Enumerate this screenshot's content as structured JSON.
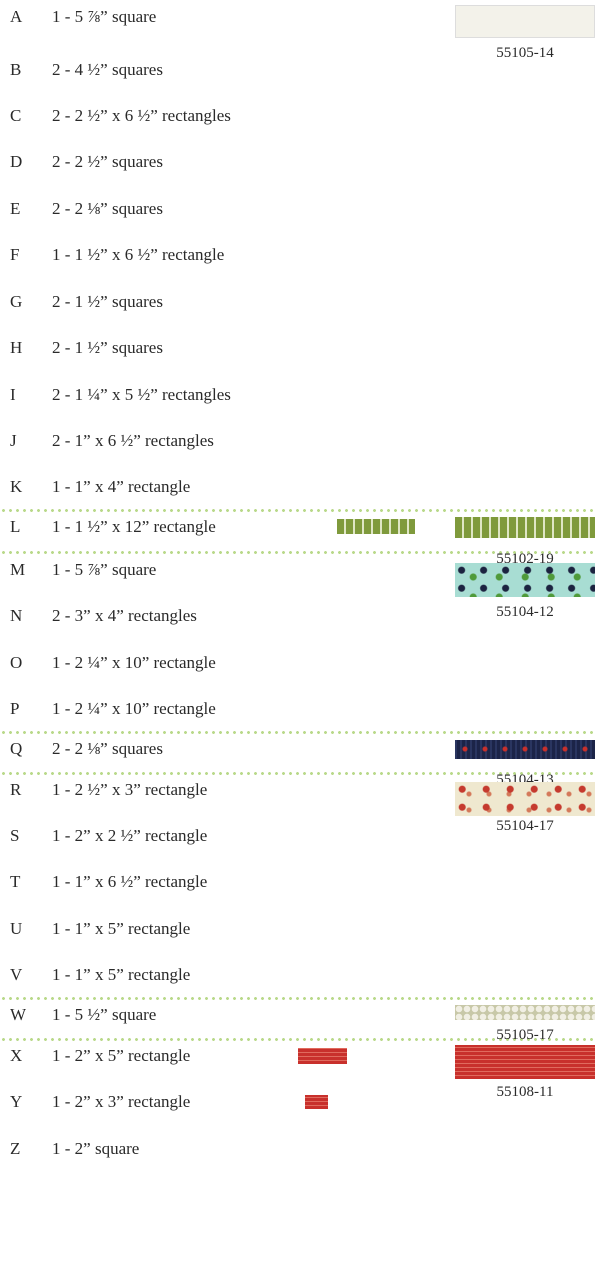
{
  "rows": [
    {
      "letter": "A",
      "text": "1 - 5 ⅞” square"
    },
    {
      "letter": "B",
      "text": "2 - 4 ½” squares"
    },
    {
      "letter": "C",
      "text": "2 - 2 ½” x 6 ½” rectangles"
    },
    {
      "letter": "D",
      "text": "2 - 2 ½” squares"
    },
    {
      "letter": "E",
      "text": "2 - 2 ⅛” squares"
    },
    {
      "letter": "F",
      "text": "1 - 1 ½” x 6 ½” rectangle"
    },
    {
      "letter": "G",
      "text": "2 - 1 ½” squares"
    },
    {
      "letter": "H",
      "text": "2 - 1 ½” squares"
    },
    {
      "letter": "I",
      "text": "2 - 1 ¼” x 5 ½” rectangles"
    },
    {
      "letter": "J",
      "text": "2 - 1” x 6 ½” rectangles"
    },
    {
      "letter": "K",
      "text": "1 - 1” x 4” rectangle"
    },
    {
      "letter": "L",
      "text": "1 - 1 ½” x 12” rectangle"
    },
    {
      "letter": "M",
      "text": "1 - 5 ⅞” square"
    },
    {
      "letter": "N",
      "text": "2 - 3” x 4” rectangles"
    },
    {
      "letter": "O",
      "text": "1 - 2 ¼” x 10” rectangle"
    },
    {
      "letter": "P",
      "text": "1 - 2 ¼” x 10” rectangle"
    },
    {
      "letter": "Q",
      "text": "2 - 2 ⅛” squares"
    },
    {
      "letter": "R",
      "text": "1 - 2 ½” x 3” rectangle"
    },
    {
      "letter": "S",
      "text": "1 - 2” x 2 ½” rectangle"
    },
    {
      "letter": "T",
      "text": "1 - 1” x 6 ½” rectangle"
    },
    {
      "letter": "U",
      "text": "1 - 1” x 5” rectangle"
    },
    {
      "letter": "V",
      "text": "1 - 1” x 5” rectangle"
    },
    {
      "letter": "W",
      "text": "1 - 5 ½” square"
    },
    {
      "letter": "X",
      "text": "1 - 2” x 5” rectangle"
    },
    {
      "letter": "Y",
      "text": "1 - 2” x 3” rectangle"
    },
    {
      "letter": "Z",
      "text": "1 - 2” square"
    }
  ],
  "fabrics": [
    {
      "code": "55105-14"
    },
    {
      "code": "55102-19"
    },
    {
      "code": "55104-12"
    },
    {
      "code": "55104-13"
    },
    {
      "code": "55104-17"
    },
    {
      "code": "55105-17"
    },
    {
      "code": "55108-11"
    }
  ]
}
